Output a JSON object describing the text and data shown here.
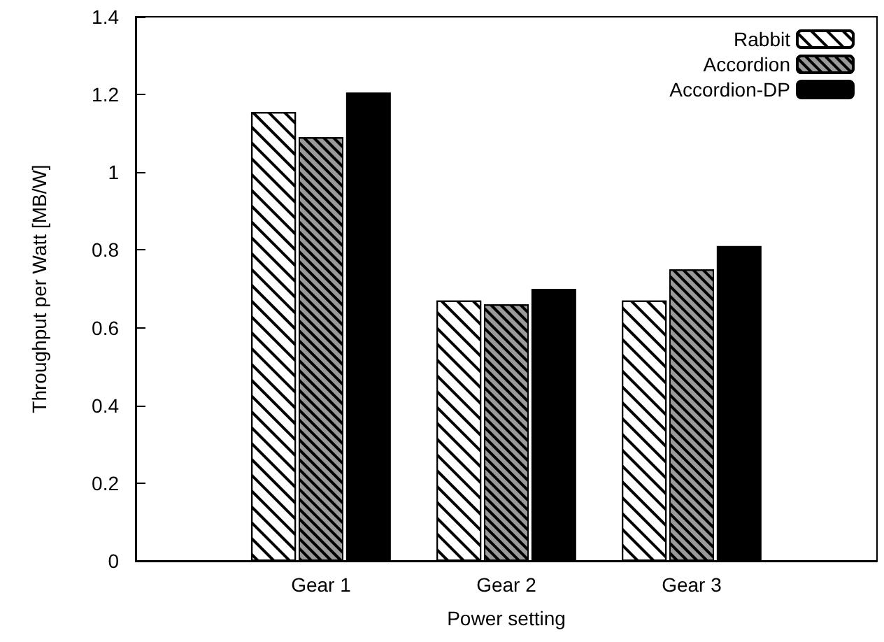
{
  "chart_data": {
    "type": "bar",
    "xlabel": "Power setting",
    "ylabel": "Throughput per Watt [MB/W]",
    "categories": [
      "Gear 1",
      "Gear 2",
      "Gear 3"
    ],
    "series": [
      {
        "name": "Rabbit",
        "color": "#ffffff",
        "values": [
          1.155,
          0.67,
          0.67
        ]
      },
      {
        "name": "Accordion",
        "color": "#9a9a9a",
        "values": [
          1.09,
          0.66,
          0.75
        ]
      },
      {
        "name": "Accordion-DP",
        "color": "#000000",
        "values": [
          1.205,
          0.7,
          0.81
        ]
      }
    ],
    "ylim": [
      0,
      1.4
    ],
    "yticks": [
      0,
      0.2,
      0.4,
      0.6,
      0.8,
      1,
      1.2,
      1.4
    ],
    "grid": false,
    "legend": "top right"
  }
}
